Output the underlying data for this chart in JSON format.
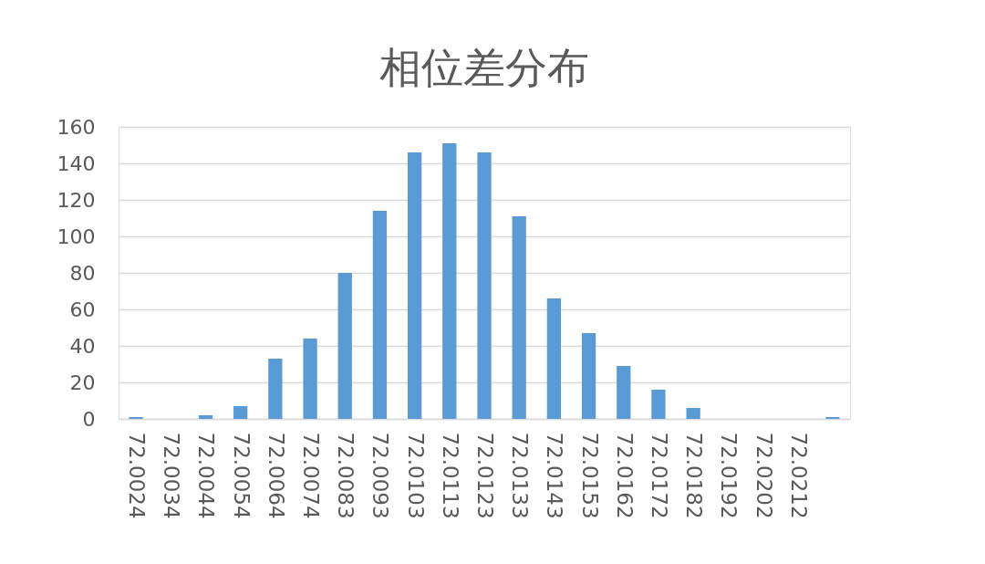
{
  "chart_data": {
    "type": "bar",
    "title": "相位差分布",
    "categories": [
      "72.0024",
      "72.0034",
      "72.0044",
      "72.0054",
      "72.0064",
      "72.0074",
      "72.0083",
      "72.0093",
      "72.0103",
      "72.0113",
      "72.0123",
      "72.0133",
      "72.0143",
      "72.0153",
      "72.0162",
      "72.0172",
      "72.0182",
      "72.0192",
      "72.0202",
      "72.0212",
      null
    ],
    "values": [
      1,
      0,
      2,
      7,
      33,
      44,
      80,
      114,
      146,
      151,
      146,
      111,
      66,
      47,
      29,
      16,
      6,
      0,
      0,
      0,
      1
    ],
    "color": "#5b9bd5",
    "ylim": [
      0,
      160
    ],
    "yticks": [
      0,
      20,
      40,
      60,
      80,
      100,
      120,
      140,
      160
    ],
    "grid": "y"
  }
}
